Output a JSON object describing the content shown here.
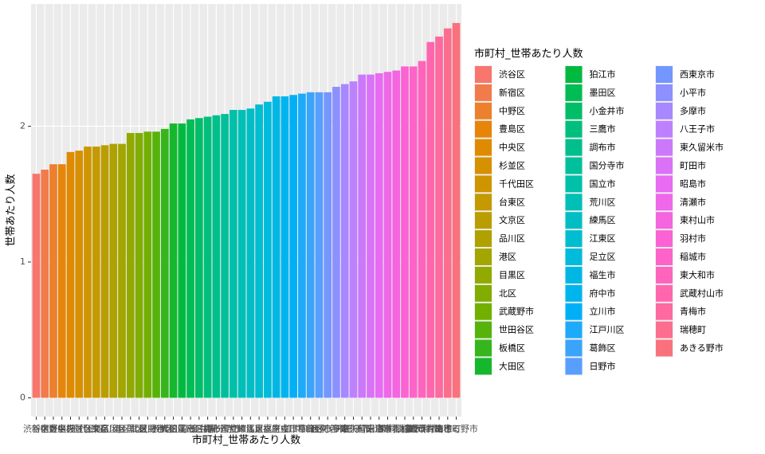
{
  "chart_data": {
    "type": "bar",
    "xlabel": "市町村_世帯あたり人数",
    "ylabel": "世帯あたり人数",
    "legend_title": "市町村_世帯あたり人数",
    "categories": [
      "渋谷区",
      "新宿区",
      "中野区",
      "豊島区",
      "中央区",
      "杉並区",
      "千代田区",
      "台東区",
      "文京区",
      "品川区",
      "港区",
      "目黒区",
      "北区",
      "武蔵野市",
      "世田谷区",
      "板橋区",
      "大田区",
      "狛江市",
      "墨田区",
      "小金井市",
      "三鷹市",
      "調布市",
      "国分寺市",
      "国立市",
      "荒川区",
      "練馬区",
      "江東区",
      "足立区",
      "福生市",
      "府中市",
      "立川市",
      "江戸川区",
      "葛飾区",
      "日野市",
      "西東京市",
      "小平市",
      "多摩市",
      "八王子市",
      "東久留米市",
      "町田市",
      "昭島市",
      "清瀬市",
      "東村山市",
      "羽村市",
      "稲城市",
      "東大和市",
      "武蔵村山市",
      "青梅市",
      "瑞穂町",
      "あきる野市"
    ],
    "values": [
      1.65,
      1.68,
      1.72,
      1.72,
      1.81,
      1.82,
      1.85,
      1.85,
      1.86,
      1.87,
      1.87,
      1.95,
      1.95,
      1.96,
      1.96,
      1.98,
      2.02,
      2.02,
      2.05,
      2.06,
      2.07,
      2.08,
      2.09,
      2.12,
      2.12,
      2.13,
      2.16,
      2.18,
      2.22,
      2.22,
      2.23,
      2.24,
      2.25,
      2.25,
      2.25,
      2.29,
      2.31,
      2.33,
      2.38,
      2.38,
      2.39,
      2.4,
      2.41,
      2.44,
      2.44,
      2.48,
      2.62,
      2.66,
      2.72,
      2.76
    ],
    "colors": [
      "#F8766D",
      "#F27B4C",
      "#ED802C",
      "#E7850B",
      "#DF8A00",
      "#D79000",
      "#CF9500",
      "#C59900",
      "#BA9D00",
      "#AEA100",
      "#A3A500",
      "#92A900",
      "#81AC00",
      "#71B000",
      "#56B30B",
      "#36B61C",
      "#15B82D",
      "#00BA3F",
      "#00BC54",
      "#00BD68",
      "#00BF7D",
      "#00BF8C",
      "#00C09B",
      "#00C0AA",
      "#00BFB7",
      "#00BEC4",
      "#00BDD0",
      "#00BBDB",
      "#00B7E4",
      "#00B4ED",
      "#00B0F6",
      "#1DAAF9",
      "#3AA4FB",
      "#579EFE",
      "#7397FF",
      "#8D90FF",
      "#A788FF",
      "#BE81FE",
      "#CB79FA",
      "#D972F7",
      "#E76BF3",
      "#EE68E9",
      "#F465DF",
      "#FB62D4",
      "#FE63C8",
      "#FE64BB",
      "#FF66AD",
      "#FE699F",
      "#FC6D8E",
      "#FA717E"
    ],
    "ylim": [
      -0.138,
      2.9
    ],
    "yticks": [
      0,
      1,
      2
    ],
    "grid": true,
    "legend": "right"
  }
}
